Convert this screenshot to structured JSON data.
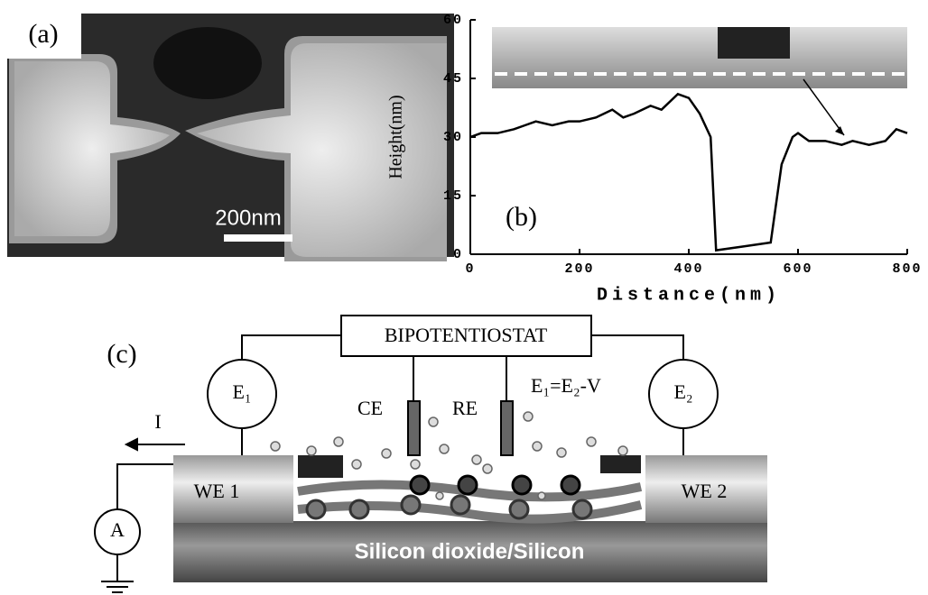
{
  "panel_a": {
    "label": "(a)",
    "scale_bar": "200nm"
  },
  "chart_data": {
    "type": "line",
    "panel_label": "(b)",
    "xlabel": "Distance(nm)",
    "ylabel": "Height(nm)",
    "x": [
      0,
      20,
      50,
      80,
      100,
      120,
      150,
      180,
      200,
      230,
      260,
      280,
      300,
      330,
      350,
      380,
      400,
      420,
      440,
      450,
      500,
      550,
      570,
      590,
      600,
      620,
      650,
      680,
      700,
      730,
      760,
      780,
      800
    ],
    "values": [
      30,
      31,
      31,
      32,
      33,
      34,
      33,
      34,
      34,
      35,
      37,
      35,
      36,
      38,
      37,
      41,
      40,
      36,
      30,
      1,
      2,
      3,
      23,
      30,
      31,
      29,
      29,
      28,
      29,
      28,
      29,
      32,
      31
    ],
    "color": "#000000",
    "xlim": [
      0,
      800
    ],
    "ylim": [
      0,
      60
    ],
    "xticks": [
      0,
      200,
      400,
      600,
      800
    ],
    "yticks": [
      0,
      15,
      30,
      45,
      60
    ]
  },
  "panel_c": {
    "label": "(c)",
    "instrument": "BIPOTENTIOSTAT",
    "e1": "E₁",
    "e2": "E₂",
    "relation": "E₁=E₂-V",
    "ce": "CE",
    "re": "RE",
    "current": "I",
    "ammeter": "A",
    "we1": "WE 1",
    "we2": "WE 2",
    "substrate": "Silicon dioxide/Silicon"
  }
}
